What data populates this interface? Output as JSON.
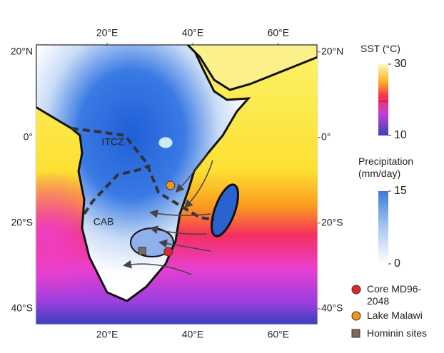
{
  "map": {
    "lonlim": [
      3.3,
      69.2
    ],
    "latlim": [
      21.3,
      -43.7
    ],
    "lon_ticks": [
      {
        "value": 20,
        "label": "20°E"
      },
      {
        "value": 40,
        "label": "40°E"
      },
      {
        "value": 60,
        "label": "60°E"
      }
    ],
    "lat_ticks": [
      {
        "value": 20,
        "label": "20°N"
      },
      {
        "value": 0,
        "label": "0°"
      },
      {
        "value": -20,
        "label": "20°S"
      },
      {
        "value": -40,
        "label": "40°S"
      }
    ],
    "annotations": {
      "itcz": "ITCZ",
      "cab": "CAB"
    }
  },
  "sst_colorbar": {
    "title": "SST (°C)",
    "lim": [
      10,
      30
    ],
    "ticks": [
      10,
      30
    ]
  },
  "precip_colorbar": {
    "title": "Precipitation (mm/day)",
    "lim": [
      0,
      15
    ],
    "ticks": [
      0,
      15
    ]
  },
  "legend": [
    {
      "label": "Core MD96-2048",
      "color": "#e3262b",
      "shape": "circle",
      "lon": 34.3,
      "lat": -26.7
    },
    {
      "label": "Lake Malawi",
      "color": "#f0961e",
      "shape": "circle",
      "lon": 34.8,
      "lat": -11.2
    },
    {
      "label": "Hominin sites",
      "color": "#7a6a58",
      "shape": "square",
      "lon": 28.2,
      "lat": -26.5
    }
  ]
}
